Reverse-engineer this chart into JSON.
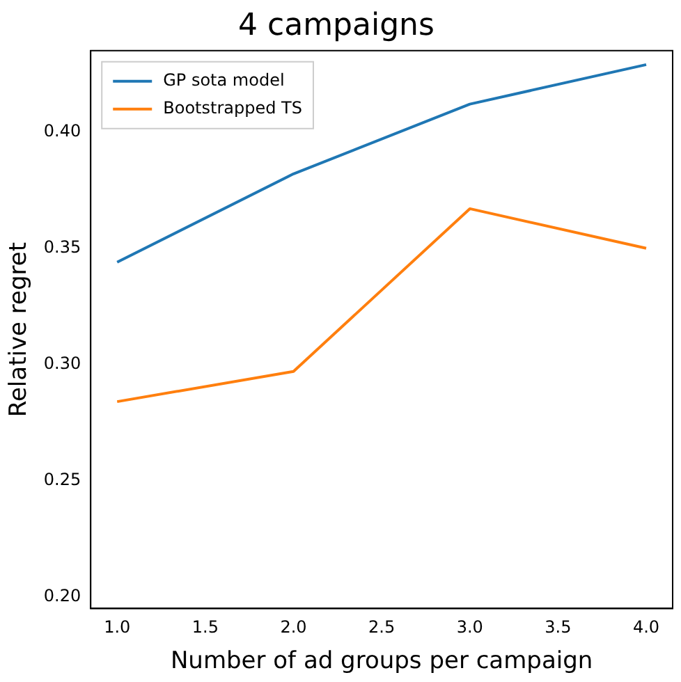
{
  "chart_data": {
    "type": "line",
    "title": "4 campaigns",
    "xlabel": "Number of ad groups per campaign",
    "ylabel": "Relative regret",
    "x": [
      1,
      2,
      3,
      4
    ],
    "series": [
      {
        "name": "GP sota model",
        "color": "#1f77b4",
        "values": [
          0.344,
          0.382,
          0.412,
          0.429
        ]
      },
      {
        "name": "Bootstrapped TS",
        "color": "#ff7f0e",
        "values": [
          0.284,
          0.297,
          0.367,
          0.35
        ]
      }
    ],
    "xlim": [
      0.85,
      4.15
    ],
    "ylim": [
      0.195,
      0.435
    ],
    "xticks": [
      {
        "value": 1,
        "label": "1.0"
      },
      {
        "value": 1.5,
        "label": "1.5"
      },
      {
        "value": 2,
        "label": "2.0"
      },
      {
        "value": 2.5,
        "label": "2.5"
      },
      {
        "value": 3,
        "label": "3.0"
      },
      {
        "value": 3.5,
        "label": "3.5"
      },
      {
        "value": 4,
        "label": "4.0"
      }
    ],
    "yticks": [
      {
        "value": 0.2,
        "label": "0.20"
      },
      {
        "value": 0.25,
        "label": "0.25"
      },
      {
        "value": 0.3,
        "label": "0.30"
      },
      {
        "value": 0.35,
        "label": "0.35"
      },
      {
        "value": 0.4,
        "label": "0.40"
      }
    ],
    "grid": false,
    "legend": "top left",
    "marker": "none",
    "line_style": "solid"
  }
}
